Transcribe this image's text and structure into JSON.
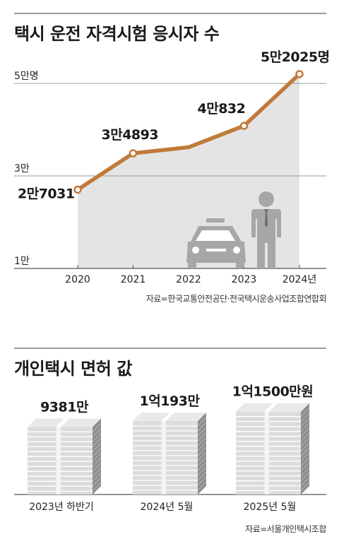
{
  "chart_data": [
    {
      "type": "line",
      "title": "택시 운전 자격시험 응시자 수",
      "x": [
        "2020",
        "2021",
        "2022",
        "2023",
        "2024년"
      ],
      "values": [
        27031,
        34893,
        36200,
        40832,
        52025
      ],
      "data_labels": [
        "2만7031",
        "3만4893",
        "",
        "4만832",
        "5만2025명"
      ],
      "y_tick_labels": [
        {
          "value": 50000,
          "label": "5만명"
        },
        {
          "value": 30000,
          "label": "3만"
        },
        {
          "value": 10000,
          "label": "1만"
        }
      ],
      "ylim": [
        10000,
        52000
      ],
      "line_color": "#c07a3a",
      "area_color": "#e4e4e4",
      "source": "자료=한국교통안전공단·전국택시운송사업조합연합회"
    },
    {
      "type": "bar",
      "title": "개인택시 면허 값",
      "categories": [
        "2023년 하반기",
        "2024년 5월",
        "2025년 5월"
      ],
      "values": [
        9381,
        10193,
        11500
      ],
      "value_unit": "만원",
      "data_labels": [
        "9381만",
        "1억193만",
        "1억1500만원"
      ],
      "source": "자료=서울개인택시조합"
    }
  ]
}
